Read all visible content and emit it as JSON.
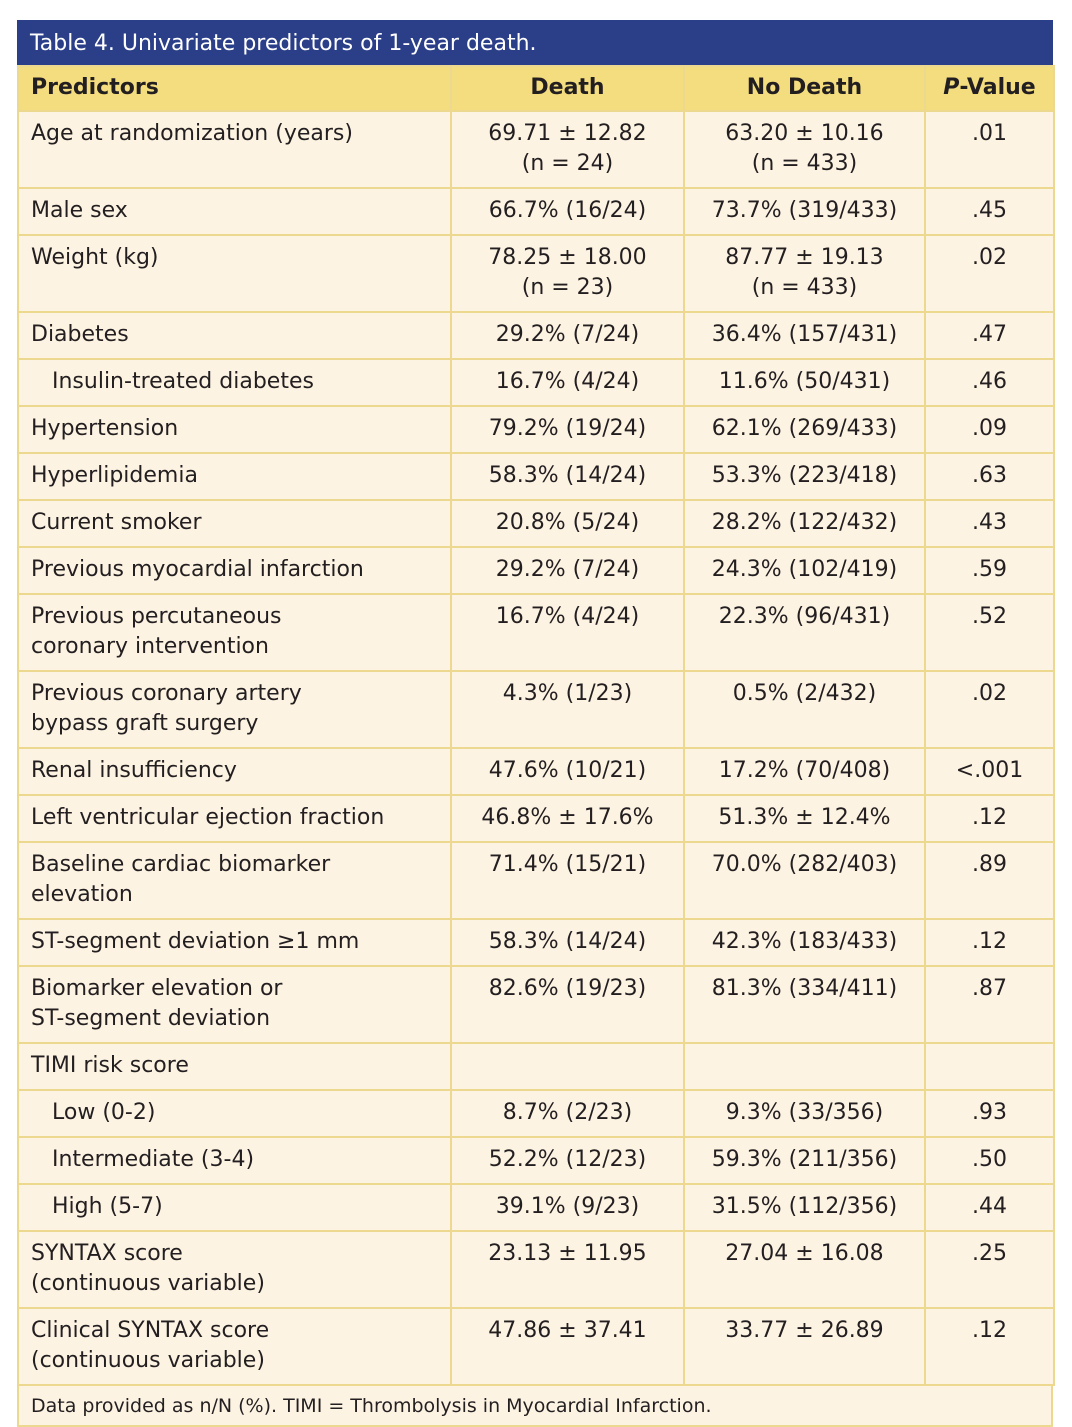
{
  "title": "Table 4. Univariate predictors of 1-year death.",
  "columns": [
    "Predictors",
    "Death",
    "No Death"
  ],
  "pvalue_column": {
    "italic": "P",
    "text": "-Value"
  },
  "rows": [
    {
      "cells": [
        "Age at randomization (years)",
        "69.71 ± 12.82\n(n = 24)",
        "63.20 ± 10.16\n(n = 433)",
        ".01"
      ]
    },
    {
      "cells": [
        "Male sex",
        "66.7% (16/24)",
        "73.7% (319/433)",
        ".45"
      ]
    },
    {
      "cells": [
        "Weight (kg)",
        "78.25 ± 18.00\n(n = 23)",
        "87.77 ± 19.13\n(n = 433)",
        ".02"
      ]
    },
    {
      "cells": [
        "Diabetes",
        "29.2% (7/24)",
        "36.4% (157/431)",
        ".47"
      ]
    },
    {
      "cells": [
        "Insulin-treated diabetes",
        "16.7% (4/24)",
        "11.6% (50/431)",
        ".46"
      ],
      "indent": true
    },
    {
      "cells": [
        "Hypertension",
        "79.2% (19/24)",
        "62.1% (269/433)",
        ".09"
      ]
    },
    {
      "cells": [
        "Hyperlipidemia",
        "58.3% (14/24)",
        "53.3% (223/418)",
        ".63"
      ]
    },
    {
      "cells": [
        "Current smoker",
        "20.8% (5/24)",
        "28.2% (122/432)",
        ".43"
      ]
    },
    {
      "cells": [
        "Previous myocardial infarction",
        "29.2% (7/24)",
        "24.3% (102/419)",
        ".59"
      ]
    },
    {
      "cells": [
        "Previous percutaneous\ncoronary intervention",
        "16.7% (4/24)",
        "22.3% (96/431)",
        ".52"
      ]
    },
    {
      "cells": [
        "Previous coronary artery\nbypass graft surgery",
        "4.3% (1/23)",
        "0.5% (2/432)",
        ".02"
      ]
    },
    {
      "cells": [
        "Renal insufficiency",
        "47.6% (10/21)",
        "17.2% (70/408)",
        "<.001"
      ]
    },
    {
      "cells": [
        "Left ventricular ejection fraction",
        "46.8% ± 17.6%",
        "51.3% ± 12.4%",
        ".12"
      ]
    },
    {
      "cells": [
        "Baseline cardiac biomarker\nelevation",
        "71.4% (15/21)",
        "70.0% (282/403)",
        ".89"
      ]
    },
    {
      "cells": [
        "ST-segment deviation ≥1 mm",
        "58.3% (14/24)",
        "42.3% (183/433)",
        ".12"
      ]
    },
    {
      "cells": [
        "Biomarker elevation or\nST-segment deviation",
        "82.6% (19/23)",
        "81.3% (334/411)",
        ".87"
      ]
    },
    {
      "cells": [
        "TIMI risk score"
      ]
    },
    {
      "cells": [
        "Low (0-2)",
        "8.7% (2/23)",
        "9.3% (33/356)",
        ".93"
      ],
      "indent": true
    },
    {
      "cells": [
        "Intermediate (3-4)",
        "52.2% (12/23)",
        "59.3% (211/356)",
        ".50"
      ],
      "indent": true
    },
    {
      "cells": [
        "High (5-7)",
        "39.1% (9/23)",
        "31.5% (112/356)",
        ".44"
      ],
      "indent": true
    },
    {
      "cells": [
        "SYNTAX score\n(continuous variable)",
        "23.13 ± 11.95",
        "27.04 ± 16.08",
        ".25"
      ]
    },
    {
      "cells": [
        "Clinical SYNTAX score\n(continuous variable)",
        "47.86 ± 37.41",
        "33.77 ± 26.89",
        ".12"
      ]
    }
  ],
  "footnote": "Data provided as n/N (%). TIMI = Thrombolysis in Myocardial Infarction."
}
